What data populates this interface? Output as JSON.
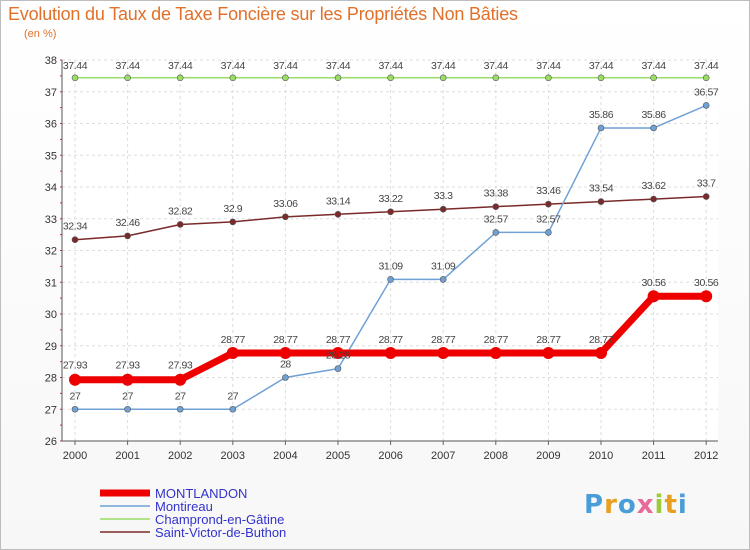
{
  "chart_data": {
    "type": "line",
    "title": "Evolution du Taux de Taxe Foncière sur les Propriétés Non Bâties",
    "unit_label": "(en %)",
    "xlabel": "",
    "ylabel": "",
    "ylim": [
      26,
      38
    ],
    "yticks": [
      26,
      27,
      28,
      29,
      30,
      31,
      32,
      33,
      34,
      35,
      36,
      37,
      38
    ],
    "categories": [
      "2000",
      "2001",
      "2002",
      "2003",
      "2004",
      "2005",
      "2006",
      "2007",
      "2008",
      "2009",
      "2010",
      "2011",
      "2012"
    ],
    "series": [
      {
        "name": "MONTLANDON",
        "color": "#ee0000",
        "values": [
          27.93,
          27.93,
          27.93,
          28.77,
          28.77,
          28.77,
          28.77,
          28.77,
          28.77,
          28.77,
          28.77,
          30.56,
          30.56
        ],
        "labels": [
          "27.93",
          "27.93",
          "27.93",
          "28.77",
          "28.77",
          "28.77",
          "28.77",
          "28.77",
          "28.77",
          "28.77",
          "28.77",
          "30.56",
          "30.56"
        ]
      },
      {
        "name": "Montireau",
        "color": "#6fa1d6",
        "values": [
          27,
          27,
          27,
          27,
          28,
          28.28,
          31.09,
          31.09,
          32.57,
          32.57,
          35.86,
          35.86,
          36.57
        ],
        "labels": [
          "27",
          "27",
          "27",
          "27",
          "28",
          "28.28",
          "31.09",
          "31.09",
          "32.57",
          "32.57",
          "35.86",
          "35.86",
          "36.57"
        ]
      },
      {
        "name": "Champrond-en-Gâtine",
        "color": "#99dd66",
        "values": [
          37.44,
          37.44,
          37.44,
          37.44,
          37.44,
          37.44,
          37.44,
          37.44,
          37.44,
          37.44,
          37.44,
          37.44,
          37.44
        ],
        "labels": [
          "37.44",
          "37.44",
          "37.44",
          "37.44",
          "37.44",
          "37.44",
          "37.44",
          "37.44",
          "37.44",
          "37.44",
          "37.44",
          "37.44",
          "37.44"
        ]
      },
      {
        "name": "Saint-Victor-de-Buthon",
        "color": "#7a2a2a",
        "values": [
          32.34,
          32.46,
          32.82,
          32.9,
          33.06,
          33.14,
          33.22,
          33.3,
          33.38,
          33.46,
          33.54,
          33.62,
          33.7
        ],
        "labels": [
          "32.34",
          "32.46",
          "32.82",
          "32.9",
          "33.06",
          "33.14",
          "33.22",
          "33.3",
          "33.38",
          "33.46",
          "33.54",
          "33.62",
          "33.7"
        ]
      }
    ],
    "legend_position": "bottom-left"
  },
  "branding": {
    "logo_letters": [
      "P",
      "r",
      "o",
      "x",
      "i",
      "t",
      "i"
    ],
    "logo_colors": [
      "#4a9ed8",
      "#e8a020",
      "#4a9ed8",
      "#e86a9a",
      "#9ccc3c",
      "#e8a020",
      "#4a9ed8"
    ]
  }
}
